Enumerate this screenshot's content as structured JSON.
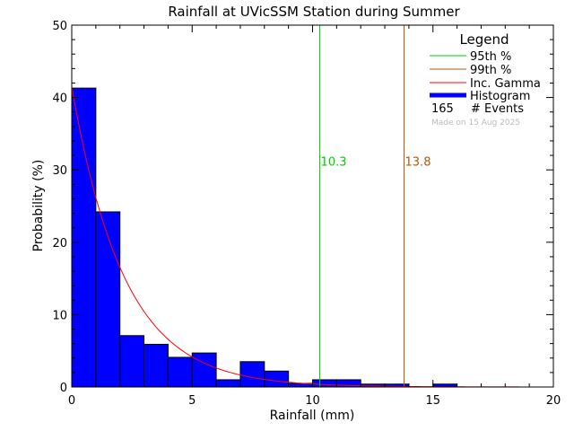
{
  "chart_data": {
    "type": "bar",
    "title": "Rainfall at UVicSSM Station during Summer",
    "xlabel": "Rainfall (mm)",
    "ylabel": "Probability (%)",
    "xlim": [
      0,
      20
    ],
    "ylim": [
      0,
      50
    ],
    "x_ticks": [
      0,
      5,
      10,
      15,
      20
    ],
    "y_ticks": [
      0,
      10,
      20,
      30,
      40,
      50
    ],
    "x_tick_labels": [
      "0",
      "5",
      "10",
      "15",
      "20"
    ],
    "y_tick_labels": [
      "0",
      "10",
      "20",
      "30",
      "40",
      "50"
    ],
    "bin_width": 1,
    "bin_starts": [
      0,
      1,
      2,
      3,
      4,
      5,
      6,
      7,
      8,
      9,
      10,
      11,
      12,
      13,
      14,
      15,
      16,
      17,
      18,
      19
    ],
    "values": [
      41.3,
      24.2,
      7.1,
      5.9,
      4.1,
      4.7,
      1.0,
      3.5,
      2.2,
      0.5,
      1.0,
      1.0,
      0.4,
      0.4,
      0.0,
      0.4,
      0.0,
      0.0,
      0.0,
      0.0
    ],
    "grid": false,
    "legend_position": "top-right",
    "legend_title": "Legend",
    "series": [
      {
        "name": "95th %",
        "color": "#00cc00",
        "type": "vline",
        "x": 10.3,
        "label": "10.3"
      },
      {
        "name": "99th %",
        "color": "#b05a10",
        "type": "vline",
        "x": 13.8,
        "label": "13.8"
      },
      {
        "name": "Inc. Gamma",
        "color": "#ff0000",
        "type": "curve",
        "y0": 41.5,
        "decay": 0.46
      },
      {
        "name": "Histogram",
        "color": "#0000ff",
        "type": "bar"
      }
    ],
    "events_count": "165",
    "events_label": "# Events",
    "made_on": "Made on 15 Aug 2025"
  }
}
